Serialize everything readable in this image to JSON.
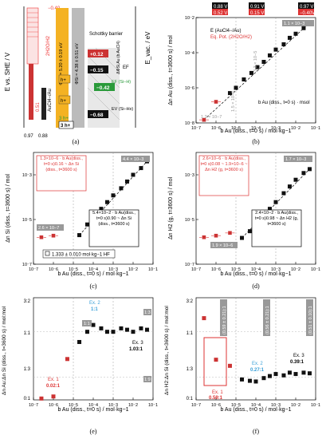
{
  "panels": {
    "a": {
      "label": "(a)"
    },
    "b": {
      "label": "(b)"
    },
    "c": {
      "label": "(c)"
    },
    "d": {
      "label": "(d)"
    },
    "e": {
      "label": "(e)"
    },
    "f": {
      "label": "(f)"
    }
  },
  "chart_data": [
    {
      "panel": "a",
      "type": "diagram",
      "ylabel_left": "E vs. SHE / V",
      "ylabel_right": "E_vac. / eV",
      "annotations": {
        "h2o_h2": "2H2O/H2",
        "h2o_val": "−0.40",
        "aucl4": "AuCl4−/Au",
        "aucl4_val": "0.97",
        "val_051": "0.51",
        "val_088": "0.88",
        "phi_si": "ΦSi = 4.38 ± 0.51 eV",
        "phi_au": "ΦAu = 5.20 ± 0.19 eV",
        "schottky": "Schottky barrier",
        "val_012": "+0.12",
        "val_015": "−0.15",
        "val_042": "−0.42",
        "val_068": "−0.68",
        "delta": "ΔΦSi,Au (b AuCl4)",
        "ef": "EF",
        "ef_si": "EF (Si–H)",
        "ev": "EV (Si–Hx)",
        "h_plus": "h+",
        "h_plus2": "h+",
        "three_h_a": "3 h+",
        "three_h_b": "3 h+"
      }
    },
    {
      "panel": "b",
      "type": "scatter",
      "xlabel": "b Au (diss., t=0 s) / mol·kg−1",
      "ylabel": "Δn Au (diss., t=3600 s) / mol",
      "xlim": [
        1e-07,
        0.1
      ],
      "ylim": [
        1e-08,
        0.01
      ],
      "legend_e": "E (AuCl4−/Au)",
      "legend_eq": "Eq. Pot. (2H2O/H2)",
      "top_boxes": [
        {
          "e": "0.88 V",
          "eq": "0.52 V"
        },
        {
          "e": "0.91 V",
          "eq": "0.15 V"
        },
        {
          "e": "0.97 V",
          "eq": "−0.40V"
        }
      ],
      "fit_label": "b Au (diss., t=0 s) · msol",
      "ann_11": "1.1 × 10−3",
      "ann_33": "3.3 × 10−5",
      "ann_15": "1.5 × 10−6",
      "ann_12": "1.2 × 10−7",
      "points": [
        [
          2.5e-07,
          1.5e-08
        ],
        [
          1e-06,
          1.6e-07
        ],
        [
          5e-06,
          5e-07
        ],
        [
          1e-05,
          1e-06
        ],
        [
          2.5e-05,
          3e-06
        ],
        [
          6e-05,
          7e-06
        ],
        [
          0.00012,
          1.5e-05
        ],
        [
          0.00025,
          3e-05
        ],
        [
          0.0005,
          7e-05
        ],
        [
          0.001,
          0.00015
        ],
        [
          0.0025,
          0.0003
        ],
        [
          0.005,
          0.0007
        ],
        [
          0.01,
          0.0012
        ],
        [
          0.025,
          0.0025
        ],
        [
          0.05,
          0.005
        ]
      ],
      "red_points": [
        [
          2.5e-07,
          1.5e-08
        ],
        [
          1e-06,
          1.6e-07
        ]
      ]
    },
    {
      "panel": "c",
      "type": "scatter",
      "xlabel": "b Au (diss., t=0 s) / mol·kg−1",
      "ylabel": "Δn Si (diss., t=3600 s) / mol",
      "box_red": "1.3×10−6 · b Au(diss., t=0 s)0.16 ~ Δn Si (diss., t=3600 s)",
      "box_black": "5.4×10−2 · b Au(diss., t=0 s)0.90 ~ Δn Si (diss., t=3600 s)",
      "legend": "1.333 ± 0.010 mol·kg−1 HF",
      "ann_low": "2.6 × 10−7",
      "ann_high": "4.4 × 10−3",
      "points": [
        [
          2e-05,
          2e-06
        ],
        [
          5e-05,
          6e-06
        ],
        [
          0.0001,
          1.5e-05
        ],
        [
          0.00025,
          3e-05
        ],
        [
          0.0005,
          6e-05
        ],
        [
          0.001,
          0.00012
        ],
        [
          0.0025,
          0.00025
        ],
        [
          0.005,
          0.0005
        ],
        [
          0.01,
          0.001
        ],
        [
          0.025,
          0.002
        ],
        [
          0.05,
          0.004
        ]
      ],
      "red_points": [
        [
          2.5e-07,
          1.6e-06
        ],
        [
          1e-06,
          1.9e-06
        ]
      ]
    },
    {
      "panel": "d",
      "type": "scatter",
      "xlabel": "b Au (diss., t=0 s) / mol·kg−1",
      "ylabel": "Δn H2 (g, t=3600 s) / mol",
      "box_red": "2.6×10−6 · b Au(diss., t=0 s)0.08 ~ 1.9×10−6 ~ Δn H2 (g, t=3600 s)",
      "box_black": "2.4×10−2 · b Au(diss., t=0 s)0.98 ~ Δn H2 (g, t=3600 s)",
      "ann_low": "1.9 × 10−6",
      "ann_high": "1.7 × 10−3",
      "points": [
        [
          2e-05,
          1.5e-06
        ],
        [
          5e-05,
          3e-06
        ],
        [
          0.0001,
          6e-06
        ],
        [
          0.00025,
          1.5e-05
        ],
        [
          0.0005,
          3e-05
        ],
        [
          0.001,
          6e-05
        ],
        [
          0.0025,
          0.00015
        ],
        [
          0.005,
          0.0003
        ],
        [
          0.01,
          0.0006
        ],
        [
          0.025,
          0.0012
        ],
        [
          0.05,
          0.0018
        ]
      ],
      "red_points": [
        [
          2.5e-07,
          1.6e-06
        ],
        [
          1e-06,
          1.9e-06
        ],
        [
          5e-06,
          2.5e-06
        ]
      ]
    },
    {
      "panel": "e",
      "type": "scatter",
      "xlabel": "b Au (diss., t=0 s) / mol·kg−1",
      "ylabel": "Δn Au:Δn Si (diss., t=3600 s) / mol:mol",
      "yticks": [
        "0:1",
        "1:3",
        "1:1",
        "3:2"
      ],
      "ratio_11": "1:1",
      "ratio_13": "1:3",
      "ratio_19": "1:9",
      "ex1": "Ex. 1",
      "ex1_val": "0.02:1",
      "ex2": "Ex. 2",
      "ex2_val": "1:1",
      "ex3": "Ex. 3",
      "ex3_val": "1.03:1",
      "points": [
        [
          2e-05,
          0.85
        ],
        [
          5e-05,
          1.0
        ],
        [
          0.0001,
          1.1
        ],
        [
          0.00025,
          1.05
        ],
        [
          0.0005,
          1.0
        ],
        [
          0.001,
          1.0
        ],
        [
          0.0025,
          1.05
        ],
        [
          0.005,
          1.03
        ],
        [
          0.01,
          1.0
        ],
        [
          0.025,
          1.05
        ],
        [
          0.05,
          1.03
        ]
      ],
      "red_points": [
        [
          2.5e-07,
          0.02
        ],
        [
          1e-06,
          0.05
        ],
        [
          5e-06,
          0.6
        ]
      ]
    },
    {
      "panel": "f",
      "type": "scatter",
      "xlabel": "b Au (diss., t=0 s) / mol·kg−1",
      "ylabel": "Δn H2:Δn Si (diss., t=3600 s) / mol:mol",
      "yticks": [
        "0:1",
        "1:3",
        "1:1",
        "3:2"
      ],
      "box_labels": [
        "(0.59 ± 0.21):1",
        "(0.56 ± 0.21):1",
        "(0.51 ± 0.10):1"
      ],
      "ex1": "Ex. 1",
      "ex1_val": "0.59:1",
      "ex2": "Ex. 2",
      "ex2_val": "0.27:1",
      "ex3": "Ex. 3",
      "ex3_val": "0.39:1",
      "points": [
        [
          2e-05,
          0.3
        ],
        [
          5e-05,
          0.28
        ],
        [
          0.0001,
          0.27
        ],
        [
          0.00025,
          0.32
        ],
        [
          0.0005,
          0.35
        ],
        [
          0.001,
          0.38
        ],
        [
          0.0025,
          0.36
        ],
        [
          0.005,
          0.4
        ],
        [
          0.01,
          0.38
        ],
        [
          0.025,
          0.4
        ],
        [
          0.05,
          0.39
        ]
      ],
      "red_points": [
        [
          2.5e-07,
          1.2
        ],
        [
          1e-06,
          0.59
        ],
        [
          5e-06,
          0.5
        ]
      ]
    }
  ]
}
